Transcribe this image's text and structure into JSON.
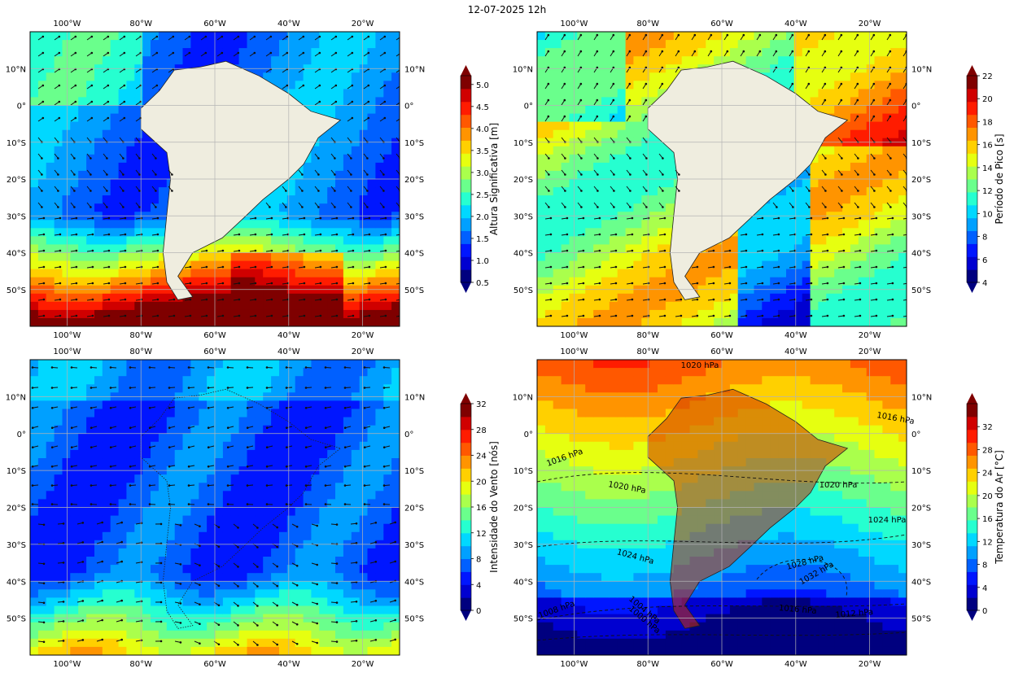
{
  "title": "12-07-2025 12h",
  "colors": {
    "land": "#efeddf",
    "grid": "#b4b4b4",
    "arrow": "#111111",
    "cmap": [
      "#00007f",
      "#0000d0",
      "#0016ff",
      "#0060ff",
      "#00a0ff",
      "#00d8ff",
      "#26ffd0",
      "#6aff8c",
      "#aaff4c",
      "#e6ff10",
      "#ffd000",
      "#ff9400",
      "#ff5800",
      "#ff1c00",
      "#d00000",
      "#7f0000"
    ]
  },
  "map_axes": {
    "lon_ticks": [
      "100°W",
      "80°W",
      "60°W",
      "40°W",
      "20°W"
    ],
    "lat_ticks": [
      "10°N",
      "0°",
      "10°S",
      "20°S",
      "30°S",
      "40°S",
      "50°S"
    ]
  },
  "chart_data": [
    {
      "type": "heatmap",
      "panel": "top-left",
      "variable": "Altura Significativa [m]",
      "colorbar_ticks": [
        "0.5",
        "1.0",
        "1.5",
        "2.0",
        "2.5",
        "3.0",
        "3.5",
        "4.0",
        "4.5",
        "5.0"
      ],
      "range": [
        0.5,
        5.2
      ],
      "overlay": "wave direction arrows",
      "extent": {
        "lon": [
          -110,
          -10
        ],
        "lat": [
          -60,
          20
        ]
      }
    },
    {
      "type": "heatmap",
      "panel": "top-right",
      "variable": "Período de Pico [s]",
      "colorbar_ticks": [
        "4",
        "6",
        "8",
        "10",
        "12",
        "14",
        "16",
        "18",
        "20",
        "22"
      ],
      "range": [
        4,
        22
      ],
      "overlay": "wave direction arrows",
      "extent": {
        "lon": [
          -110,
          -10
        ],
        "lat": [
          -60,
          20
        ]
      }
    },
    {
      "type": "heatmap",
      "panel": "bottom-left",
      "variable": "Intensidade do Vento [nós]",
      "colorbar_ticks": [
        "0",
        "4",
        "8",
        "12",
        "16",
        "20",
        "24",
        "28",
        "32"
      ],
      "range": [
        0,
        32
      ],
      "overlay": "wind vectors",
      "extent": {
        "lon": [
          -110,
          -10
        ],
        "lat": [
          -60,
          20
        ]
      }
    },
    {
      "type": "heatmap",
      "panel": "bottom-right",
      "variable": "Temperatura do Ar [°C]",
      "colorbar_ticks": [
        "0",
        "4",
        "8",
        "12",
        "16",
        "20",
        "24",
        "28",
        "32"
      ],
      "range": [
        0,
        36
      ],
      "overlay": "sea-level pressure isobars",
      "isobar_labels": [
        "1020 hPa",
        "1016 hPa",
        "1016 hPa",
        "1020 hPa",
        "1020 hPa",
        "1024 hPa",
        "1024 hPa",
        "1028 hPa",
        "1032 hPa",
        "1016 hPa",
        "1012 hPa",
        "1008 hPa",
        "1004 hPa",
        "1000 hPa"
      ],
      "extent": {
        "lon": [
          -110,
          -10
        ],
        "lat": [
          -60,
          20
        ]
      }
    }
  ]
}
